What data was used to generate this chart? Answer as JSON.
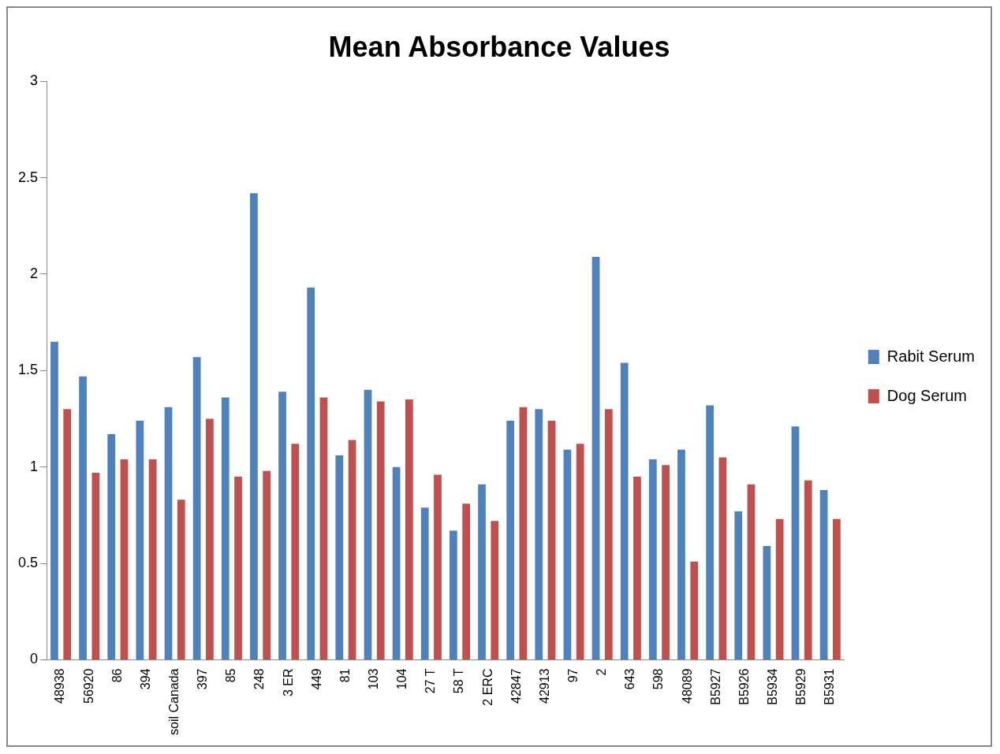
{
  "chart_data": {
    "type": "bar",
    "title": "Mean Absorbance Values",
    "categories": [
      "48938",
      "56920",
      "86",
      "394",
      "soil Canada",
      "397",
      "85",
      "248",
      "3 ER",
      "449",
      "81",
      "103",
      "104",
      "27 T",
      "58 T",
      "2 ERC",
      "42847",
      "42913",
      "97",
      "2",
      "643",
      "598",
      "48089",
      "B5927",
      "B5926",
      "B5934",
      "B5929",
      "B5931"
    ],
    "series": [
      {
        "name": "Rabit Serum",
        "color": "#4f81bd",
        "values": [
          1.65,
          1.47,
          1.17,
          1.24,
          1.31,
          1.57,
          1.36,
          2.42,
          1.39,
          1.93,
          1.06,
          1.4,
          1.0,
          0.79,
          0.67,
          0.91,
          1.24,
          1.3,
          1.09,
          2.09,
          1.54,
          1.04,
          1.09,
          1.32,
          0.77,
          0.59,
          1.21,
          0.88
        ]
      },
      {
        "name": "Dog Serum",
        "color": "#c0504d",
        "values": [
          1.3,
          0.97,
          1.04,
          1.04,
          0.83,
          1.25,
          0.95,
          0.98,
          1.12,
          1.36,
          1.14,
          1.34,
          1.35,
          0.96,
          0.81,
          0.72,
          1.31,
          1.24,
          1.12,
          1.3,
          0.95,
          1.01,
          0.51,
          1.05,
          0.91,
          0.73,
          0.93,
          0.73
        ]
      }
    ],
    "ylim": [
      0,
      3
    ],
    "yticks": [
      0,
      0.5,
      1,
      1.5,
      2,
      2.5,
      3
    ],
    "grid": false,
    "legend": "right"
  }
}
